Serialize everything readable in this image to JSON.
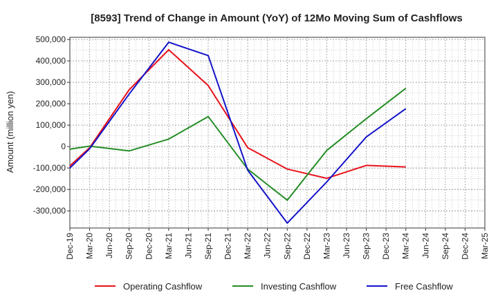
{
  "chart_data": {
    "type": "line",
    "title": "[8593]  Trend of Change in Amount (YoY) of 12Mo Moving Sum of Cashflows",
    "xlabel": "",
    "ylabel": "Amount (million yen)",
    "ylim": [
      -380000,
      510000
    ],
    "yticks": [
      500000,
      400000,
      300000,
      200000,
      100000,
      0,
      -100000,
      -200000,
      -300000
    ],
    "ytick_labels": [
      "500,000",
      "400,000",
      "300,000",
      "200,000",
      "100,000",
      "0",
      "-100,000",
      "-200,000",
      "-300,000"
    ],
    "categories": [
      "Dec-19",
      "Mar-20",
      "Jun-20",
      "Sep-20",
      "Dec-20",
      "Mar-21",
      "Jun-21",
      "Sep-21",
      "Dec-21",
      "Mar-22",
      "Jun-22",
      "Sep-22",
      "Dec-22",
      "Mar-23",
      "Jun-23",
      "Sep-23",
      "Dec-23",
      "Mar-24",
      "Jun-24",
      "Sep-24",
      "Dec-24",
      "Mar-25"
    ],
    "grid": true,
    "legend_position": "bottom",
    "series": [
      {
        "name": "Operating Cashflow",
        "color": "#e8121b",
        "points": [
          {
            "x": "Dec-19",
            "y": -90000
          },
          {
            "x": "Mar-20",
            "y": -5000
          },
          {
            "x": "Sep-20",
            "y": 265000
          },
          {
            "x": "Mar-21",
            "y": 452000
          },
          {
            "x": "Sep-21",
            "y": 285000
          },
          {
            "x": "Mar-22",
            "y": -5000
          },
          {
            "x": "Sep-22",
            "y": -105000
          },
          {
            "x": "Mar-23",
            "y": -148000
          },
          {
            "x": "Sep-23",
            "y": -88000
          },
          {
            "x": "Mar-24",
            "y": -95000
          }
        ]
      },
      {
        "name": "Investing Cashflow",
        "color": "#238c25",
        "points": [
          {
            "x": "Dec-19",
            "y": -12000
          },
          {
            "x": "Mar-20",
            "y": 2000
          },
          {
            "x": "Sep-20",
            "y": -20000
          },
          {
            "x": "Mar-21",
            "y": 35000
          },
          {
            "x": "Sep-21",
            "y": 140000
          },
          {
            "x": "Mar-22",
            "y": -105000
          },
          {
            "x": "Sep-22",
            "y": -250000
          },
          {
            "x": "Mar-23",
            "y": -18000
          },
          {
            "x": "Sep-23",
            "y": 130000
          },
          {
            "x": "Mar-24",
            "y": 272000
          }
        ]
      },
      {
        "name": "Free Cashflow",
        "color": "#1313c9",
        "points": [
          {
            "x": "Dec-19",
            "y": -100000
          },
          {
            "x": "Mar-20",
            "y": -10000
          },
          {
            "x": "Sep-20",
            "y": 245000
          },
          {
            "x": "Mar-21",
            "y": 487000
          },
          {
            "x": "Sep-21",
            "y": 425000
          },
          {
            "x": "Mar-22",
            "y": -110000
          },
          {
            "x": "Sep-22",
            "y": -357000
          },
          {
            "x": "Mar-23",
            "y": -165000
          },
          {
            "x": "Sep-23",
            "y": 45000
          },
          {
            "x": "Mar-24",
            "y": 177000
          }
        ]
      }
    ]
  }
}
